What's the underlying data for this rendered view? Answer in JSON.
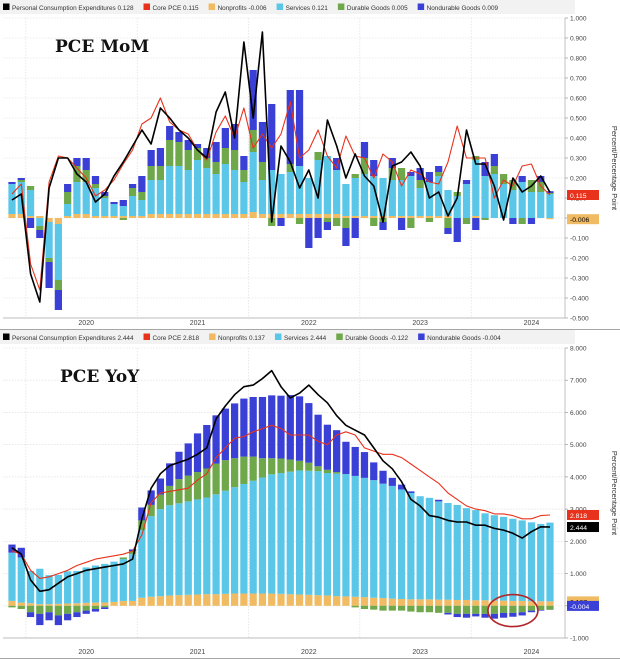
{
  "chart_data": [
    {
      "type": "bar",
      "title": "PCE MoM",
      "ylabel": "Percent/Percentage Point",
      "ylim": [
        -0.5,
        1.0
      ],
      "y_ticks": [
        "1.000",
        "0.900",
        "0.800",
        "0.700",
        "0.600",
        "0.500",
        "0.400",
        "0.300",
        "0.200",
        "0.100",
        "0.000",
        "-0.100",
        "-0.200",
        "-0.300",
        "-0.400",
        "-0.500"
      ],
      "x_tick_labels": [
        "2020",
        "2021",
        "2022",
        "2023",
        "2024"
      ],
      "legend": [
        {
          "label": "Personal Consumption Expenditures",
          "value": "0.128",
          "color": "#000000"
        },
        {
          "label": "Core PCE",
          "value": "0.115",
          "color": "#e8321c"
        },
        {
          "label": "Nonprofits",
          "value": "-0.006",
          "color": "#f0bb63"
        },
        {
          "label": "Services",
          "value": "0.121",
          "color": "#5bc7e8"
        },
        {
          "label": "Durable Goods",
          "value": "0.005",
          "color": "#6fa84a"
        },
        {
          "label": "Nondurable Goods",
          "value": "0.009",
          "color": "#3a3fd6"
        }
      ],
      "value_tags": [
        {
          "text": "0.115",
          "color": "#e8321c",
          "value": 0.115
        },
        {
          "text": "-0.006",
          "color": "#f0bb63",
          "value": -0.006
        }
      ],
      "months": [
        "2019-11",
        "2019-12",
        "2020-01",
        "2020-02",
        "2020-03",
        "2020-04",
        "2020-05",
        "2020-06",
        "2020-07",
        "2020-08",
        "2020-09",
        "2020-10",
        "2020-11",
        "2020-12",
        "2021-01",
        "2021-02",
        "2021-03",
        "2021-04",
        "2021-05",
        "2021-06",
        "2021-07",
        "2021-08",
        "2021-09",
        "2021-10",
        "2021-11",
        "2021-12",
        "2022-01",
        "2022-02",
        "2022-03",
        "2022-04",
        "2022-05",
        "2022-06",
        "2022-07",
        "2022-08",
        "2022-09",
        "2022-10",
        "2022-11",
        "2022-12",
        "2023-01",
        "2023-02",
        "2023-03",
        "2023-04",
        "2023-05",
        "2023-06",
        "2023-07",
        "2023-08",
        "2023-09",
        "2023-10",
        "2023-11",
        "2023-12",
        "2024-01",
        "2024-02",
        "2024-03",
        "2024-04",
        "2024-05",
        "2024-06",
        "2024-07",
        "2024-08",
        "2024-09"
      ],
      "series": [
        {
          "name": "Services",
          "color": "#5bc7e8",
          "values": [
            0.15,
            0.16,
            0.13,
            -0.04,
            -0.18,
            -0.28,
            0.06,
            0.16,
            0.16,
            0.14,
            0.09,
            0.06,
            0.05,
            0.1,
            0.08,
            0.17,
            0.17,
            0.24,
            0.24,
            0.22,
            0.27,
            0.23,
            0.2,
            0.25,
            0.22,
            0.16,
            0.3,
            0.17,
            0.22,
            0.2,
            0.21,
            0.24,
            0.18,
            0.27,
            0.29,
            0.22,
            0.16,
            0.19,
            0.21,
            0.2,
            0.19,
            0.18,
            0.18,
            0.2,
            0.14,
            0.17,
            0.2,
            0.13,
            0.11,
            0.17,
            0.28,
            0.21,
            0.22,
            0.17,
            0.14,
            0.18,
            0.13,
            0.13,
            0.12
          ]
        },
        {
          "name": "Nonprofits",
          "color": "#f0bb63",
          "values": [
            0.02,
            0.02,
            0.01,
            0.01,
            -0.02,
            -0.03,
            0.01,
            0.02,
            0.02,
            0.01,
            0.01,
            0.01,
            0.01,
            0.01,
            0.01,
            0.02,
            0.02,
            0.02,
            0.02,
            0.02,
            0.02,
            0.02,
            0.02,
            0.02,
            0.02,
            0.02,
            0.03,
            0.02,
            0.02,
            0.02,
            0.02,
            0.02,
            0.02,
            0.02,
            0.02,
            0.02,
            0.01,
            0.01,
            0.01,
            0.01,
            0.01,
            0.01,
            0.01,
            0.01,
            0.01,
            0.01,
            0.01,
            0.01,
            0.0,
            0.0,
            0.01,
            0.0,
            0.0,
            0.0,
            0.0,
            0.0,
            0.0,
            0.0,
            -0.006
          ]
        },
        {
          "name": "Durable Goods",
          "color": "#6fa84a",
          "values": [
            0.0,
            0.01,
            0.02,
            -0.02,
            -0.02,
            -0.05,
            0.06,
            0.08,
            0.06,
            0.02,
            0.01,
            0.0,
            -0.01,
            0.04,
            0.04,
            0.07,
            0.07,
            0.13,
            0.12,
            0.1,
            0.06,
            0.05,
            0.06,
            0.08,
            0.1,
            0.06,
            0.11,
            0.09,
            -0.04,
            0.0,
            0.04,
            -0.03,
            0.0,
            0.04,
            -0.02,
            -0.04,
            -0.05,
            0.02,
            0.08,
            -0.04,
            -0.02,
            0.06,
            0.06,
            -0.05,
            0.04,
            -0.02,
            0.02,
            -0.05,
            0.02,
            -0.03,
            0.02,
            -0.01,
            0.04,
            0.05,
            0.05,
            -0.03,
            0.06,
            0.05,
            0.005
          ]
        },
        {
          "name": "Nondurable Goods",
          "color": "#3a3fd6",
          "values": [
            0.01,
            0.01,
            -0.05,
            -0.04,
            -0.13,
            -0.1,
            0.04,
            0.04,
            0.06,
            0.04,
            0.02,
            0.01,
            0.03,
            0.02,
            0.08,
            0.08,
            0.09,
            0.07,
            0.05,
            0.05,
            0.02,
            0.05,
            0.1,
            0.1,
            0.13,
            0.07,
            0.3,
            0.2,
            0.33,
            -0.04,
            0.37,
            0.38,
            -0.15,
            -0.1,
            -0.04,
            0.06,
            -0.09,
            -0.1,
            0.08,
            0.08,
            -0.04,
            0.05,
            -0.06,
            0.02,
            0.06,
            0.05,
            0.03,
            -0.03,
            -0.12,
            0.02,
            -0.06,
            0.07,
            0.06,
            0.0,
            -0.03,
            0.03,
            -0.03,
            0.03,
            0.009
          ]
        },
        {
          "name": "Personal Consumption Expenditures",
          "color": "#000000",
          "values": [
            0.09,
            0.12,
            -0.28,
            -0.42,
            0.15,
            0.3,
            0.3,
            0.22,
            0.18,
            0.08,
            0.12,
            0.21,
            0.28,
            0.36,
            0.44,
            0.37,
            0.55,
            0.5,
            0.44,
            0.4,
            0.34,
            0.3,
            0.53,
            0.63,
            0.4,
            0.88,
            0.5,
            0.93,
            -0.02,
            0.36,
            0.28,
            0.15,
            0.24,
            0.1,
            0.49,
            0.36,
            0.2,
            0.32,
            0.21,
            0.16,
            -0.02,
            0.26,
            0.28,
            0.33,
            0.26,
            0.1,
            0.13,
            0.01,
            0.1,
            0.44,
            0.27,
            0.27,
            0.16,
            -0.01,
            0.2,
            0.13,
            0.16,
            0.21,
            0.128
          ]
        },
        {
          "name": "Core PCE",
          "color": "#e8321c",
          "values": [
            0.12,
            0.17,
            -0.23,
            -0.36,
            0.18,
            0.31,
            0.3,
            0.25,
            0.2,
            0.11,
            0.14,
            0.19,
            0.27,
            0.34,
            0.47,
            0.5,
            0.6,
            0.48,
            0.44,
            0.42,
            0.34,
            0.29,
            0.43,
            0.51,
            0.4,
            0.55,
            0.35,
            0.42,
            0.35,
            0.42,
            0.58,
            0.3,
            0.34,
            0.44,
            0.31,
            0.25,
            0.41,
            0.31,
            0.3,
            0.2,
            0.32,
            0.28,
            0.16,
            0.24,
            0.22,
            0.18,
            0.17,
            0.28,
            0.46,
            0.3,
            0.3,
            0.3,
            0.1,
            0.19,
            0.16,
            0.26,
            0.27,
            0.16,
            0.115
          ]
        }
      ]
    },
    {
      "type": "bar",
      "title": "PCE YoY",
      "ylabel": "Percent/Percentage Point",
      "ylim": [
        -1.0,
        8.0
      ],
      "y_ticks": [
        "8.000",
        "7.000",
        "6.000",
        "5.000",
        "4.000",
        "3.000",
        "2.000",
        "1.000",
        "0.000",
        "-1.000"
      ],
      "x_tick_labels": [
        "2020",
        "2021",
        "2022",
        "2023",
        "2024"
      ],
      "legend": [
        {
          "label": "Personal Consumption Expenditures",
          "value": "2.444",
          "color": "#000000"
        },
        {
          "label": "Core PCE",
          "value": "2.818",
          "color": "#e8321c"
        },
        {
          "label": "Nonprofits",
          "value": "0.137",
          "color": "#f0bb63"
        },
        {
          "label": "Services",
          "value": "2.444",
          "color": "#5bc7e8"
        },
        {
          "label": "Durable Goods",
          "value": "-0.122",
          "color": "#6fa84a"
        },
        {
          "label": "Nondurable Goods",
          "value": "-0.004",
          "color": "#3a3fd6"
        }
      ],
      "value_tags": [
        {
          "text": "2.818",
          "color": "#e8321c",
          "value": 2.818
        },
        {
          "text": "2.444",
          "color": "#000000",
          "value": 2.444
        },
        {
          "text": "0.137",
          "color": "#f0bb63",
          "value": 0.137
        },
        {
          "text": "-0.004",
          "color": "#3a3fd6",
          "value": -0.004
        }
      ],
      "months": [
        "2019-11",
        "2019-12",
        "2020-01",
        "2020-02",
        "2020-03",
        "2020-04",
        "2020-05",
        "2020-06",
        "2020-07",
        "2020-08",
        "2020-09",
        "2020-10",
        "2020-11",
        "2020-12",
        "2021-01",
        "2021-02",
        "2021-03",
        "2021-04",
        "2021-05",
        "2021-06",
        "2021-07",
        "2021-08",
        "2021-09",
        "2021-10",
        "2021-11",
        "2021-12",
        "2022-01",
        "2022-02",
        "2022-03",
        "2022-04",
        "2022-05",
        "2022-06",
        "2022-07",
        "2022-08",
        "2022-09",
        "2022-10",
        "2022-11",
        "2022-12",
        "2023-01",
        "2023-02",
        "2023-03",
        "2023-04",
        "2023-05",
        "2023-06",
        "2023-07",
        "2023-08",
        "2023-09",
        "2023-10",
        "2023-11",
        "2023-12",
        "2024-01",
        "2024-02",
        "2024-03",
        "2024-04",
        "2024-05",
        "2024-06",
        "2024-07",
        "2024-08",
        "2024-09"
      ],
      "series": [
        {
          "name": "Services",
          "color": "#5bc7e8",
          "values": [
            1.5,
            1.4,
            1.0,
            1.1,
            0.9,
            0.9,
            1.0,
            1.0,
            1.1,
            1.15,
            1.2,
            1.25,
            1.3,
            1.45,
            2.1,
            2.5,
            2.7,
            2.8,
            2.85,
            2.9,
            2.95,
            3.0,
            3.1,
            3.2,
            3.3,
            3.4,
            3.5,
            3.6,
            3.7,
            3.75,
            3.8,
            3.85,
            3.85,
            3.85,
            3.8,
            3.8,
            3.8,
            3.75,
            3.7,
            3.65,
            3.55,
            3.5,
            3.4,
            3.3,
            3.2,
            3.15,
            3.05,
            3.0,
            2.95,
            2.85,
            2.8,
            2.7,
            2.65,
            2.6,
            2.55,
            2.5,
            2.45,
            2.4,
            2.444
          ]
        },
        {
          "name": "Nonprofits",
          "color": "#f0bb63",
          "values": [
            0.15,
            0.1,
            0.08,
            0.05,
            0.05,
            0.06,
            0.07,
            0.08,
            0.09,
            0.1,
            0.1,
            0.12,
            0.15,
            0.15,
            0.25,
            0.28,
            0.3,
            0.32,
            0.33,
            0.34,
            0.35,
            0.36,
            0.36,
            0.37,
            0.38,
            0.38,
            0.38,
            0.38,
            0.38,
            0.37,
            0.36,
            0.35,
            0.34,
            0.33,
            0.32,
            0.3,
            0.29,
            0.28,
            0.27,
            0.25,
            0.24,
            0.22,
            0.21,
            0.2,
            0.2,
            0.2,
            0.19,
            0.19,
            0.18,
            0.18,
            0.17,
            0.17,
            0.16,
            0.16,
            0.15,
            0.15,
            0.14,
            0.14,
            0.137
          ]
        },
        {
          "name": "Durable Goods",
          "color": "#6fa84a",
          "values": [
            -0.05,
            -0.1,
            -0.2,
            -0.25,
            -0.2,
            -0.3,
            -0.25,
            -0.2,
            -0.15,
            -0.1,
            -0.05,
            0.0,
            0.05,
            0.1,
            0.3,
            0.35,
            0.45,
            0.6,
            0.75,
            0.8,
            0.85,
            0.9,
            0.95,
            0.95,
            0.9,
            0.85,
            0.75,
            0.6,
            0.5,
            0.45,
            0.38,
            0.3,
            0.25,
            0.15,
            0.1,
            0.05,
            0.0,
            -0.05,
            -0.1,
            -0.12,
            -0.15,
            -0.15,
            -0.15,
            -0.18,
            -0.2,
            -0.2,
            -0.22,
            -0.22,
            -0.25,
            -0.25,
            -0.25,
            -0.25,
            -0.25,
            -0.22,
            -0.22,
            -0.2,
            -0.15,
            -0.13,
            -0.122
          ]
        },
        {
          "name": "Nondurable Goods",
          "color": "#3a3fd6",
          "values": [
            0.25,
            0.3,
            -0.15,
            -0.35,
            -0.25,
            -0.3,
            -0.2,
            -0.15,
            -0.1,
            -0.08,
            -0.05,
            0.0,
            0.0,
            0.05,
            0.4,
            0.45,
            0.5,
            0.7,
            0.85,
            1.0,
            1.2,
            1.35,
            1.5,
            1.6,
            1.7,
            1.8,
            1.85,
            1.9,
            1.95,
            1.95,
            2.0,
            2.0,
            1.85,
            1.6,
            1.4,
            1.3,
            1.0,
            0.9,
            0.8,
            0.55,
            0.4,
            0.25,
            0.15,
            0.05,
            0.0,
            0.0,
            0.05,
            -0.05,
            -0.1,
            -0.12,
            -0.08,
            -0.12,
            -0.15,
            -0.15,
            -0.12,
            -0.1,
            -0.05,
            -0.02,
            -0.004
          ]
        },
        {
          "name": "Personal Consumption Expenditures",
          "color": "#000000",
          "values": [
            1.8,
            1.6,
            0.8,
            0.45,
            0.5,
            0.7,
            0.9,
            1.0,
            1.1,
            1.15,
            1.2,
            1.25,
            1.3,
            1.45,
            2.7,
            3.65,
            4.1,
            4.35,
            4.45,
            4.55,
            4.7,
            4.9,
            5.8,
            6.2,
            6.55,
            6.8,
            6.85,
            7.05,
            7.3,
            6.8,
            6.45,
            6.6,
            6.85,
            6.55,
            6.3,
            5.9,
            5.6,
            5.45,
            5.3,
            4.9,
            4.5,
            4.25,
            3.85,
            3.3,
            3.1,
            2.8,
            2.75,
            2.65,
            2.6,
            2.6,
            2.5,
            2.5,
            2.4,
            2.35,
            2.25,
            2.1,
            2.3,
            2.45,
            2.444
          ]
        },
        {
          "name": "Core PCE",
          "color": "#e8321c",
          "values": [
            1.7,
            1.6,
            1.1,
            0.85,
            0.9,
            1.0,
            1.1,
            1.25,
            1.35,
            1.45,
            1.5,
            1.55,
            1.6,
            1.7,
            2.2,
            3.2,
            3.5,
            3.55,
            3.6,
            3.65,
            3.9,
            4.1,
            4.6,
            4.9,
            5.2,
            5.25,
            5.4,
            5.5,
            5.6,
            5.5,
            5.3,
            5.3,
            5.3,
            5.1,
            5.0,
            5.3,
            5.4,
            5.3,
            4.9,
            4.8,
            4.7,
            4.7,
            4.6,
            4.4,
            4.2,
            4.0,
            3.8,
            3.5,
            3.3,
            3.1,
            3.0,
            2.95,
            2.85,
            2.85,
            2.8,
            2.7,
            2.7,
            2.8,
            2.818
          ]
        }
      ]
    }
  ]
}
